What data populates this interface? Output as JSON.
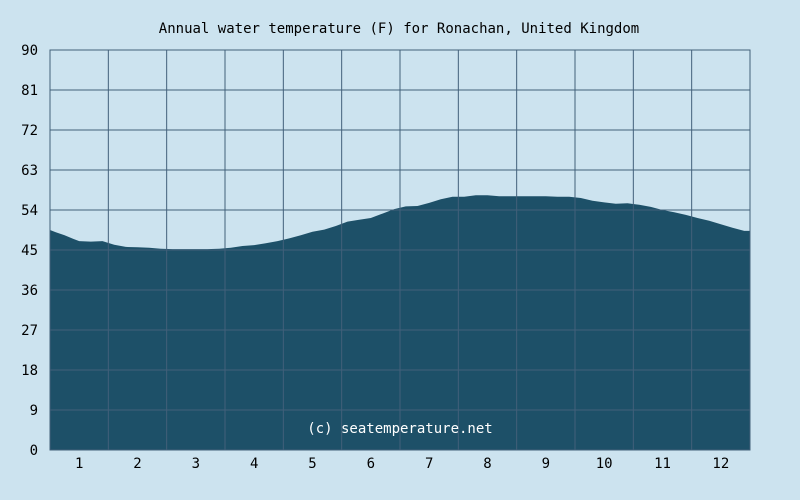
{
  "colors": {
    "background": "#cce3ef",
    "area_fill": "#1d5068",
    "grid": "#42607a",
    "plot_border": "#42607a"
  },
  "chart_data": {
    "type": "area",
    "title": "Annual water temperature (F) for Ronachan, United Kingdom",
    "watermark": "(c) seatemperature.net",
    "xlabel": "",
    "ylabel": "",
    "xlim": [
      0.5,
      12.5
    ],
    "ylim": [
      0,
      90
    ],
    "grid": true,
    "legend": "none",
    "x_ticks": [
      "1",
      "2",
      "3",
      "4",
      "5",
      "6",
      "7",
      "8",
      "9",
      "10",
      "11",
      "12"
    ],
    "y_ticks": [
      "0",
      "9",
      "18",
      "27",
      "36",
      "45",
      "54",
      "63",
      "72",
      "81",
      "90"
    ],
    "series": [
      {
        "x": [
          0.5,
          0.6,
          0.75,
          0.9,
          1.0,
          1.2,
          1.4,
          1.6,
          1.8,
          2.0,
          2.2,
          2.4,
          2.6,
          2.8,
          3.0,
          3.2,
          3.4,
          3.6,
          3.8,
          4.0,
          4.2,
          4.4,
          4.6,
          4.8,
          5.0,
          5.2,
          5.4,
          5.6,
          5.8,
          6.0,
          6.2,
          6.4,
          6.6,
          6.8,
          7.0,
          7.2,
          7.4,
          7.6,
          7.8,
          8.0,
          8.2,
          8.4,
          8.6,
          8.8,
          9.0,
          9.2,
          9.4,
          9.6,
          9.8,
          10.0,
          10.2,
          10.4,
          10.6,
          10.8,
          11.0,
          11.2,
          11.4,
          11.6,
          11.8,
          12.0,
          12.2,
          12.4,
          12.5
        ],
        "values": [
          49.5,
          49.0,
          48.3,
          47.5,
          47.0,
          46.9,
          47.0,
          46.2,
          45.7,
          45.6,
          45.5,
          45.3,
          45.2,
          45.2,
          45.2,
          45.2,
          45.3,
          45.5,
          45.9,
          46.1,
          46.5,
          47.0,
          47.6,
          48.3,
          49.1,
          49.6,
          50.4,
          51.4,
          51.8,
          52.2,
          53.2,
          54.2,
          54.8,
          54.9,
          55.6,
          56.4,
          57.0,
          57.0,
          57.3,
          57.3,
          57.1,
          57.1,
          57.1,
          57.1,
          57.1,
          57.0,
          57.0,
          56.7,
          56.1,
          55.7,
          55.4,
          55.5,
          55.2,
          54.7,
          54.0,
          53.5,
          52.9,
          52.2,
          51.6,
          50.8,
          50.0,
          49.3,
          49.3
        ]
      }
    ]
  }
}
